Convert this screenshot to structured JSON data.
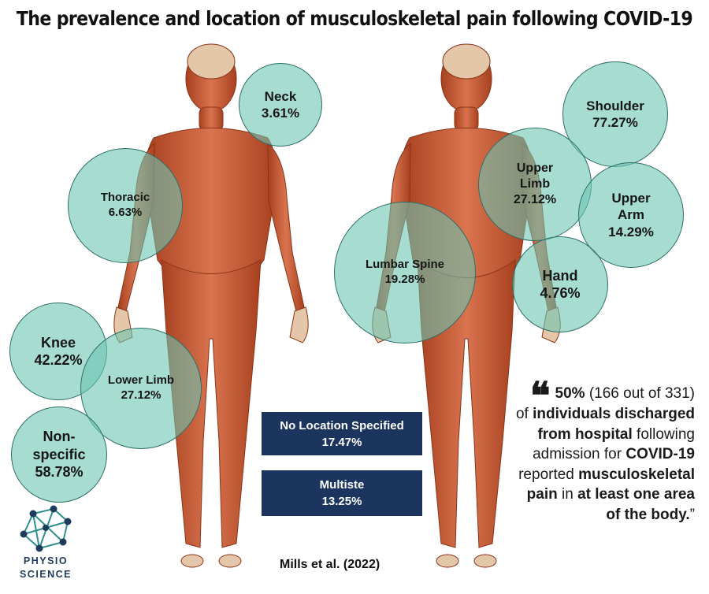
{
  "title": "The prevalence and location of musculoskeletal pain following COVID-19",
  "colors": {
    "bubble_fill": "#6cc4b2",
    "bubble_border": "#2d6f68",
    "box_bg": "#1c355e",
    "muscle": "#c4552f",
    "logo_teal": "#2f8f8f",
    "logo_navy": "#1f3b5c"
  },
  "bubbles": {
    "neck": {
      "label": "Neck",
      "value": "3.61%"
    },
    "thoracic": {
      "label": "Thoracic",
      "value": "6.63%"
    },
    "knee": {
      "label": "Knee",
      "value": "42.22%"
    },
    "lower_limb": {
      "label": "Lower Limb",
      "value": "27.12%"
    },
    "non_specific": {
      "label_1": "Non-",
      "label_2": "specific",
      "value": "58.78%"
    },
    "shoulder": {
      "label": "Shoulder",
      "value": "77.27%"
    },
    "upper_limb": {
      "label_1": "Upper",
      "label_2": "Limb",
      "value": "27.12%"
    },
    "upper_arm": {
      "label_1": "Upper",
      "label_2": "Arm",
      "value": "14.29%"
    },
    "lumbar_spine": {
      "label": "Lumbar Spine",
      "value": "19.28%"
    },
    "hand": {
      "label": "Hand",
      "value": "4.76%"
    }
  },
  "boxes": {
    "no_location": {
      "label": "No Location Specified",
      "value": "17.47%"
    },
    "multisite": {
      "label": "Multiste",
      "value": "13.25%"
    }
  },
  "quote": {
    "b1": "50%",
    "t1": " (166 out of 331) of ",
    "b2": "individuals discharged from hospital",
    "t2": " following admission for ",
    "b3": "COVID-19",
    "t3": " reported ",
    "b4": "musculoskeletal pain",
    "t4": " in ",
    "b5": "at least one area of the body.",
    "t5": "”"
  },
  "citation": "Mills et al. (2022)",
  "logo": {
    "line1": "PHYSIO",
    "line2": "SCIENCE",
    "icon": "network-logo-icon"
  }
}
